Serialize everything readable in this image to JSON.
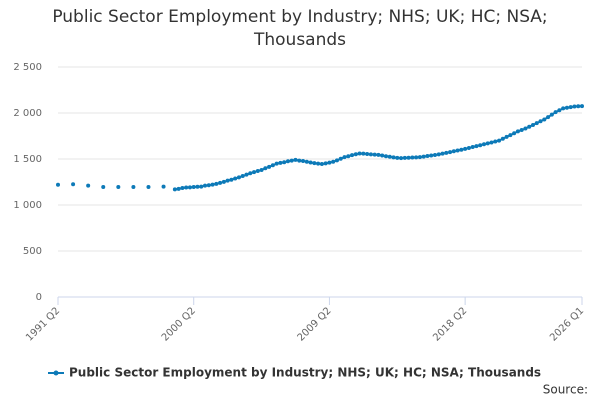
{
  "chart_data": {
    "type": "line",
    "title": "Public Sector Employment by Industry; NHS; UK; HC; NSA; Thousands",
    "source": "Source:",
    "categories": [
      "1991 Q2",
      null,
      null,
      null,
      null,
      null,
      null,
      null,
      null,
      null,
      null,
      null,
      null,
      null,
      null,
      null,
      null,
      null,
      null,
      null,
      null,
      null,
      null,
      null,
      null,
      null,
      null,
      null,
      null,
      null,
      null,
      null,
      null,
      null,
      null,
      null,
      "2000 Q2",
      null,
      null,
      null,
      null,
      null,
      null,
      null,
      null,
      null,
      null,
      null,
      null,
      null,
      null,
      null,
      null,
      null,
      null,
      null,
      null,
      null,
      null,
      null,
      null,
      null,
      null,
      null,
      null,
      null,
      null,
      null,
      null,
      null,
      null,
      null,
      "2009 Q2",
      null,
      null,
      null,
      null,
      null,
      null,
      null,
      null,
      null,
      null,
      null,
      null,
      null,
      null,
      null,
      null,
      null,
      null,
      null,
      null,
      null,
      null,
      null,
      null,
      null,
      null,
      null,
      null,
      null,
      null,
      null,
      null,
      null,
      null,
      null,
      "2018 Q2",
      null,
      null,
      null,
      null,
      null,
      null,
      null,
      null,
      null,
      null,
      null,
      null,
      null,
      null,
      null,
      null,
      null,
      null,
      null,
      null,
      null,
      null,
      null,
      null,
      null,
      null,
      null,
      null,
      null,
      null,
      "2026 Q1"
    ],
    "series": [
      {
        "name": "Public Sector Employment by Industry; NHS; UK; HC; NSA; Thousands",
        "color": "#0d7ab8",
        "values": [
          1220,
          null,
          null,
          null,
          1225,
          null,
          null,
          null,
          1210,
          null,
          null,
          null,
          1195,
          null,
          null,
          null,
          1195,
          null,
          null,
          null,
          1195,
          null,
          null,
          null,
          1195,
          null,
          null,
          null,
          1200,
          null,
          null,
          1170,
          1175,
          1185,
          1190,
          1192,
          1195,
          1198,
          1200,
          1210,
          1215,
          1222,
          1230,
          1240,
          1252,
          1265,
          1275,
          1288,
          1300,
          1315,
          1330,
          1345,
          1358,
          1370,
          1380,
          1400,
          1415,
          1432,
          1450,
          1458,
          1465,
          1475,
          1483,
          1490,
          1483,
          1478,
          1470,
          1462,
          1455,
          1450,
          1445,
          1452,
          1460,
          1470,
          1485,
          1503,
          1520,
          1530,
          1542,
          1552,
          1560,
          1558,
          1555,
          1550,
          1548,
          1545,
          1538,
          1530,
          1524,
          1518,
          1512,
          1510,
          1512,
          1514,
          1516,
          1518,
          1520,
          1526,
          1532,
          1538,
          1544,
          1550,
          1558,
          1566,
          1575,
          1584,
          1592,
          1600,
          1610,
          1620,
          1630,
          1640,
          1650,
          1660,
          1670,
          1680,
          1690,
          1700,
          1720,
          1740,
          1760,
          1780,
          1800,
          1815,
          1832,
          1850,
          1870,
          1890,
          1910,
          1930,
          1955,
          1982,
          2010,
          2030,
          2050,
          2057,
          2064,
          2070,
          2073,
          2075
        ]
      }
    ],
    "ylim": [
      0,
      2500
    ],
    "yticks": [
      0,
      500,
      {
        "value": 1000,
        "label": "1 000"
      },
      {
        "value": 1500,
        "label": "1 500"
      },
      {
        "value": 2000,
        "label": "2 000"
      },
      {
        "value": 2500,
        "label": "2 500"
      }
    ],
    "grid": true
  }
}
